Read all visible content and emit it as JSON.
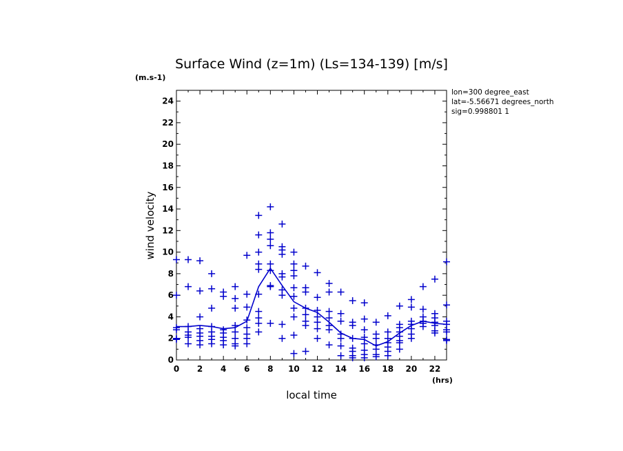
{
  "chart_data": {
    "type": "scatter",
    "title": "Surface Wind (z=1m) (Ls=134-139) [m/s]",
    "y_unit_label": "(m.s-1)",
    "x_unit_label": "(hrs)",
    "xlabel": "local time",
    "ylabel": "wind velocity",
    "xlim": [
      0,
      23
    ],
    "ylim": [
      0,
      25
    ],
    "x_ticks": [
      0,
      2,
      4,
      6,
      8,
      10,
      12,
      14,
      16,
      18,
      20,
      22
    ],
    "y_ticks": [
      0,
      2,
      4,
      6,
      8,
      10,
      12,
      14,
      16,
      18,
      20,
      22,
      24
    ],
    "grid": false,
    "info": [
      "lon=300 degree_east",
      "lat=-5.56671 degrees_north",
      "sig=0.998801 1"
    ],
    "color": "#0000cc",
    "points": [
      {
        "x": 0,
        "y": [
          9.3,
          6.0,
          3.0,
          2.8,
          2.0,
          1.9
        ]
      },
      {
        "x": 1,
        "y": [
          9.3,
          6.8,
          3.1,
          2.6,
          2.3,
          2.1,
          1.5
        ]
      },
      {
        "x": 2,
        "y": [
          9.2,
          6.4,
          4.0,
          2.9,
          2.5,
          2.2,
          1.8,
          1.4
        ]
      },
      {
        "x": 3,
        "y": [
          8.0,
          6.6,
          4.8,
          3.1,
          2.6,
          2.2,
          1.9,
          1.5
        ]
      },
      {
        "x": 4,
        "y": [
          6.3,
          5.9,
          2.8,
          2.5,
          2.1,
          1.8,
          1.4
        ]
      },
      {
        "x": 5,
        "y": [
          6.8,
          5.7,
          4.8,
          3.2,
          2.6,
          2.0,
          1.5,
          1.3
        ]
      },
      {
        "x": 6,
        "y": [
          9.7,
          6.1,
          4.9,
          3.7,
          3.0,
          2.4,
          2.0,
          1.5
        ]
      },
      {
        "x": 7,
        "y": [
          13.4,
          11.6,
          10.0,
          8.9,
          8.4,
          6.1,
          4.5,
          3.9,
          3.4,
          2.6
        ]
      },
      {
        "x": 8,
        "y": [
          14.2,
          11.8,
          11.2,
          10.6,
          8.9,
          8.3,
          6.9,
          6.8,
          3.4
        ]
      },
      {
        "x": 9,
        "y": [
          12.6,
          10.5,
          10.2,
          9.8,
          8.0,
          7.7,
          6.5,
          6.0,
          3.3,
          2.0
        ]
      },
      {
        "x": 10,
        "y": [
          10.0,
          8.9,
          8.3,
          7.8,
          6.7,
          5.9,
          4.8,
          4.0,
          2.3,
          0.6
        ]
      },
      {
        "x": 11,
        "y": [
          8.7,
          6.7,
          6.3,
          4.8,
          4.2,
          3.6,
          3.2,
          0.8
        ]
      },
      {
        "x": 12,
        "y": [
          8.1,
          5.8,
          4.6,
          4.0,
          3.5,
          2.9,
          2.0
        ]
      },
      {
        "x": 13,
        "y": [
          7.1,
          6.3,
          4.5,
          3.9,
          3.2,
          2.8,
          1.4
        ]
      },
      {
        "x": 14,
        "y": [
          6.3,
          4.3,
          3.6,
          2.4,
          2.0,
          1.3,
          0.4
        ]
      },
      {
        "x": 15,
        "y": [
          5.5,
          3.5,
          3.2,
          2.0,
          1.1,
          0.8,
          0.4,
          0.2
        ]
      },
      {
        "x": 16,
        "y": [
          5.3,
          3.8,
          2.8,
          2.1,
          1.5,
          0.9,
          0.5,
          0.2
        ]
      },
      {
        "x": 17,
        "y": [
          3.5,
          2.4,
          2.0,
          1.4,
          1.0,
          0.5,
          0.3
        ]
      },
      {
        "x": 18,
        "y": [
          4.1,
          2.6,
          2.0,
          1.6,
          1.2,
          0.8,
          0.4
        ]
      },
      {
        "x": 19,
        "y": [
          5.0,
          3.3,
          3.0,
          2.6,
          2.2,
          1.8,
          1.6,
          1.0
        ]
      },
      {
        "x": 20,
        "y": [
          5.6,
          4.9,
          3.6,
          3.3,
          2.9,
          2.4,
          2.0
        ]
      },
      {
        "x": 21,
        "y": [
          6.8,
          4.7,
          4.0,
          3.6,
          3.4,
          3.1
        ]
      },
      {
        "x": 22,
        "y": [
          7.5,
          4.3,
          3.9,
          3.5,
          3.2,
          2.7,
          2.5
        ]
      },
      {
        "x": 23,
        "y": [
          9.1,
          5.1,
          3.6,
          3.3,
          2.8,
          2.6,
          1.9,
          1.8
        ]
      }
    ],
    "mean_line": {
      "x": [
        0,
        1,
        2,
        3,
        4,
        5,
        6,
        7,
        8,
        9,
        10,
        11,
        12,
        13,
        14,
        15,
        16,
        17,
        18,
        19,
        20,
        21,
        22,
        23
      ],
      "y": [
        3.1,
        3.1,
        3.2,
        3.1,
        2.9,
        3.0,
        3.6,
        6.8,
        8.5,
        6.9,
        5.4,
        4.8,
        4.4,
        3.5,
        2.5,
        2.0,
        1.9,
        1.3,
        1.7,
        2.5,
        3.2,
        3.6,
        3.4,
        3.3
      ]
    }
  }
}
